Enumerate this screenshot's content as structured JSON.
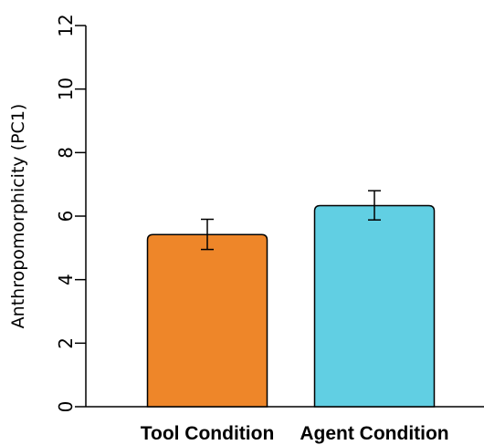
{
  "chart_data": {
    "type": "bar",
    "title": "",
    "xlabel": "",
    "ylabel": "Anthropomorphicity (PC1)",
    "categories": [
      "Tool Condition",
      "Agent Condition"
    ],
    "values": [
      5.42,
      6.33
    ],
    "error": [
      {
        "low": 4.95,
        "high": 5.9
      },
      {
        "low": 5.88,
        "high": 6.8
      }
    ],
    "colors": [
      "#ee8629",
      "#61cfe3"
    ],
    "bar_stroke": "#000000",
    "ylim": [
      0,
      12
    ],
    "yticks": [
      "0",
      "2",
      "4",
      "6",
      "8",
      "10",
      "12"
    ],
    "grid": false,
    "legend": "none"
  }
}
